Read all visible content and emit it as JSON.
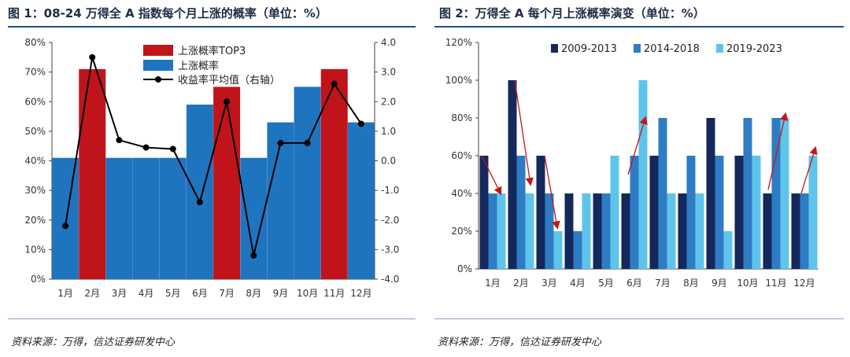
{
  "left": {
    "title": "图 1：08-24 万得全 A 指数每个月上涨的概率（单位：%）",
    "source": "资料来源：万得，信达证券研发中心"
  },
  "right": {
    "title": "图 2：万得全 A 每个月上涨概率演变（单位：%）",
    "source": "资料来源：万得，信达证券研发中心"
  },
  "chart_data": [
    {
      "type": "bar",
      "categories": [
        "1月",
        "2月",
        "3月",
        "4月",
        "5月",
        "6月",
        "7月",
        "8月",
        "9月",
        "10月",
        "11月",
        "12月"
      ],
      "series": [
        {
          "name": "上涨概率TOP3",
          "color": "#c0141a",
          "values": [
            null,
            71,
            null,
            null,
            null,
            null,
            65,
            null,
            null,
            null,
            71,
            null
          ]
        },
        {
          "name": "上涨概率",
          "color": "#1f74bf",
          "values": [
            41,
            null,
            41,
            41,
            41,
            59,
            null,
            41,
            53,
            65,
            null,
            53
          ]
        },
        {
          "name": "收益率平均值（右轴）",
          "type": "line",
          "axis": "right",
          "color": "#000000",
          "values": [
            -2.2,
            3.5,
            0.7,
            0.45,
            0.4,
            -1.4,
            2.0,
            -3.2,
            0.6,
            0.6,
            2.6,
            1.25
          ]
        }
      ],
      "ylim": [
        0,
        80
      ],
      "y_ticks": [
        "0%",
        "10%",
        "20%",
        "30%",
        "40%",
        "50%",
        "60%",
        "70%",
        "80%"
      ],
      "y2lim": [
        -4,
        4
      ],
      "y2_ticks": [
        "-4.0",
        "-3.0",
        "-2.0",
        "-1.0",
        "0.0",
        "1.0",
        "2.0",
        "3.0",
        "4.0"
      ],
      "legend": "top-center",
      "grid": false
    },
    {
      "type": "bar",
      "categories": [
        "1月",
        "2月",
        "3月",
        "4月",
        "5月",
        "6月",
        "7月",
        "8月",
        "9月",
        "10月",
        "11月",
        "12月"
      ],
      "series": [
        {
          "name": "2009-2013",
          "color": "#14285c",
          "values": [
            60,
            100,
            60,
            40,
            40,
            40,
            60,
            40,
            80,
            60,
            40,
            40
          ]
        },
        {
          "name": "2014-2018",
          "color": "#2e7cc4",
          "values": [
            40,
            60,
            40,
            20,
            40,
            60,
            80,
            60,
            60,
            80,
            80,
            40
          ]
        },
        {
          "name": "2019-2023",
          "color": "#5fc4ec",
          "values": [
            40,
            40,
            20,
            40,
            60,
            100,
            40,
            40,
            20,
            60,
            80,
            60
          ]
        }
      ],
      "ylim": [
        0,
        120
      ],
      "y_ticks": [
        "0%",
        "20%",
        "40%",
        "60%",
        "80%",
        "100%",
        "120%"
      ],
      "legend": "top-center",
      "grid": false,
      "arrow_color": "#c01818"
    }
  ]
}
